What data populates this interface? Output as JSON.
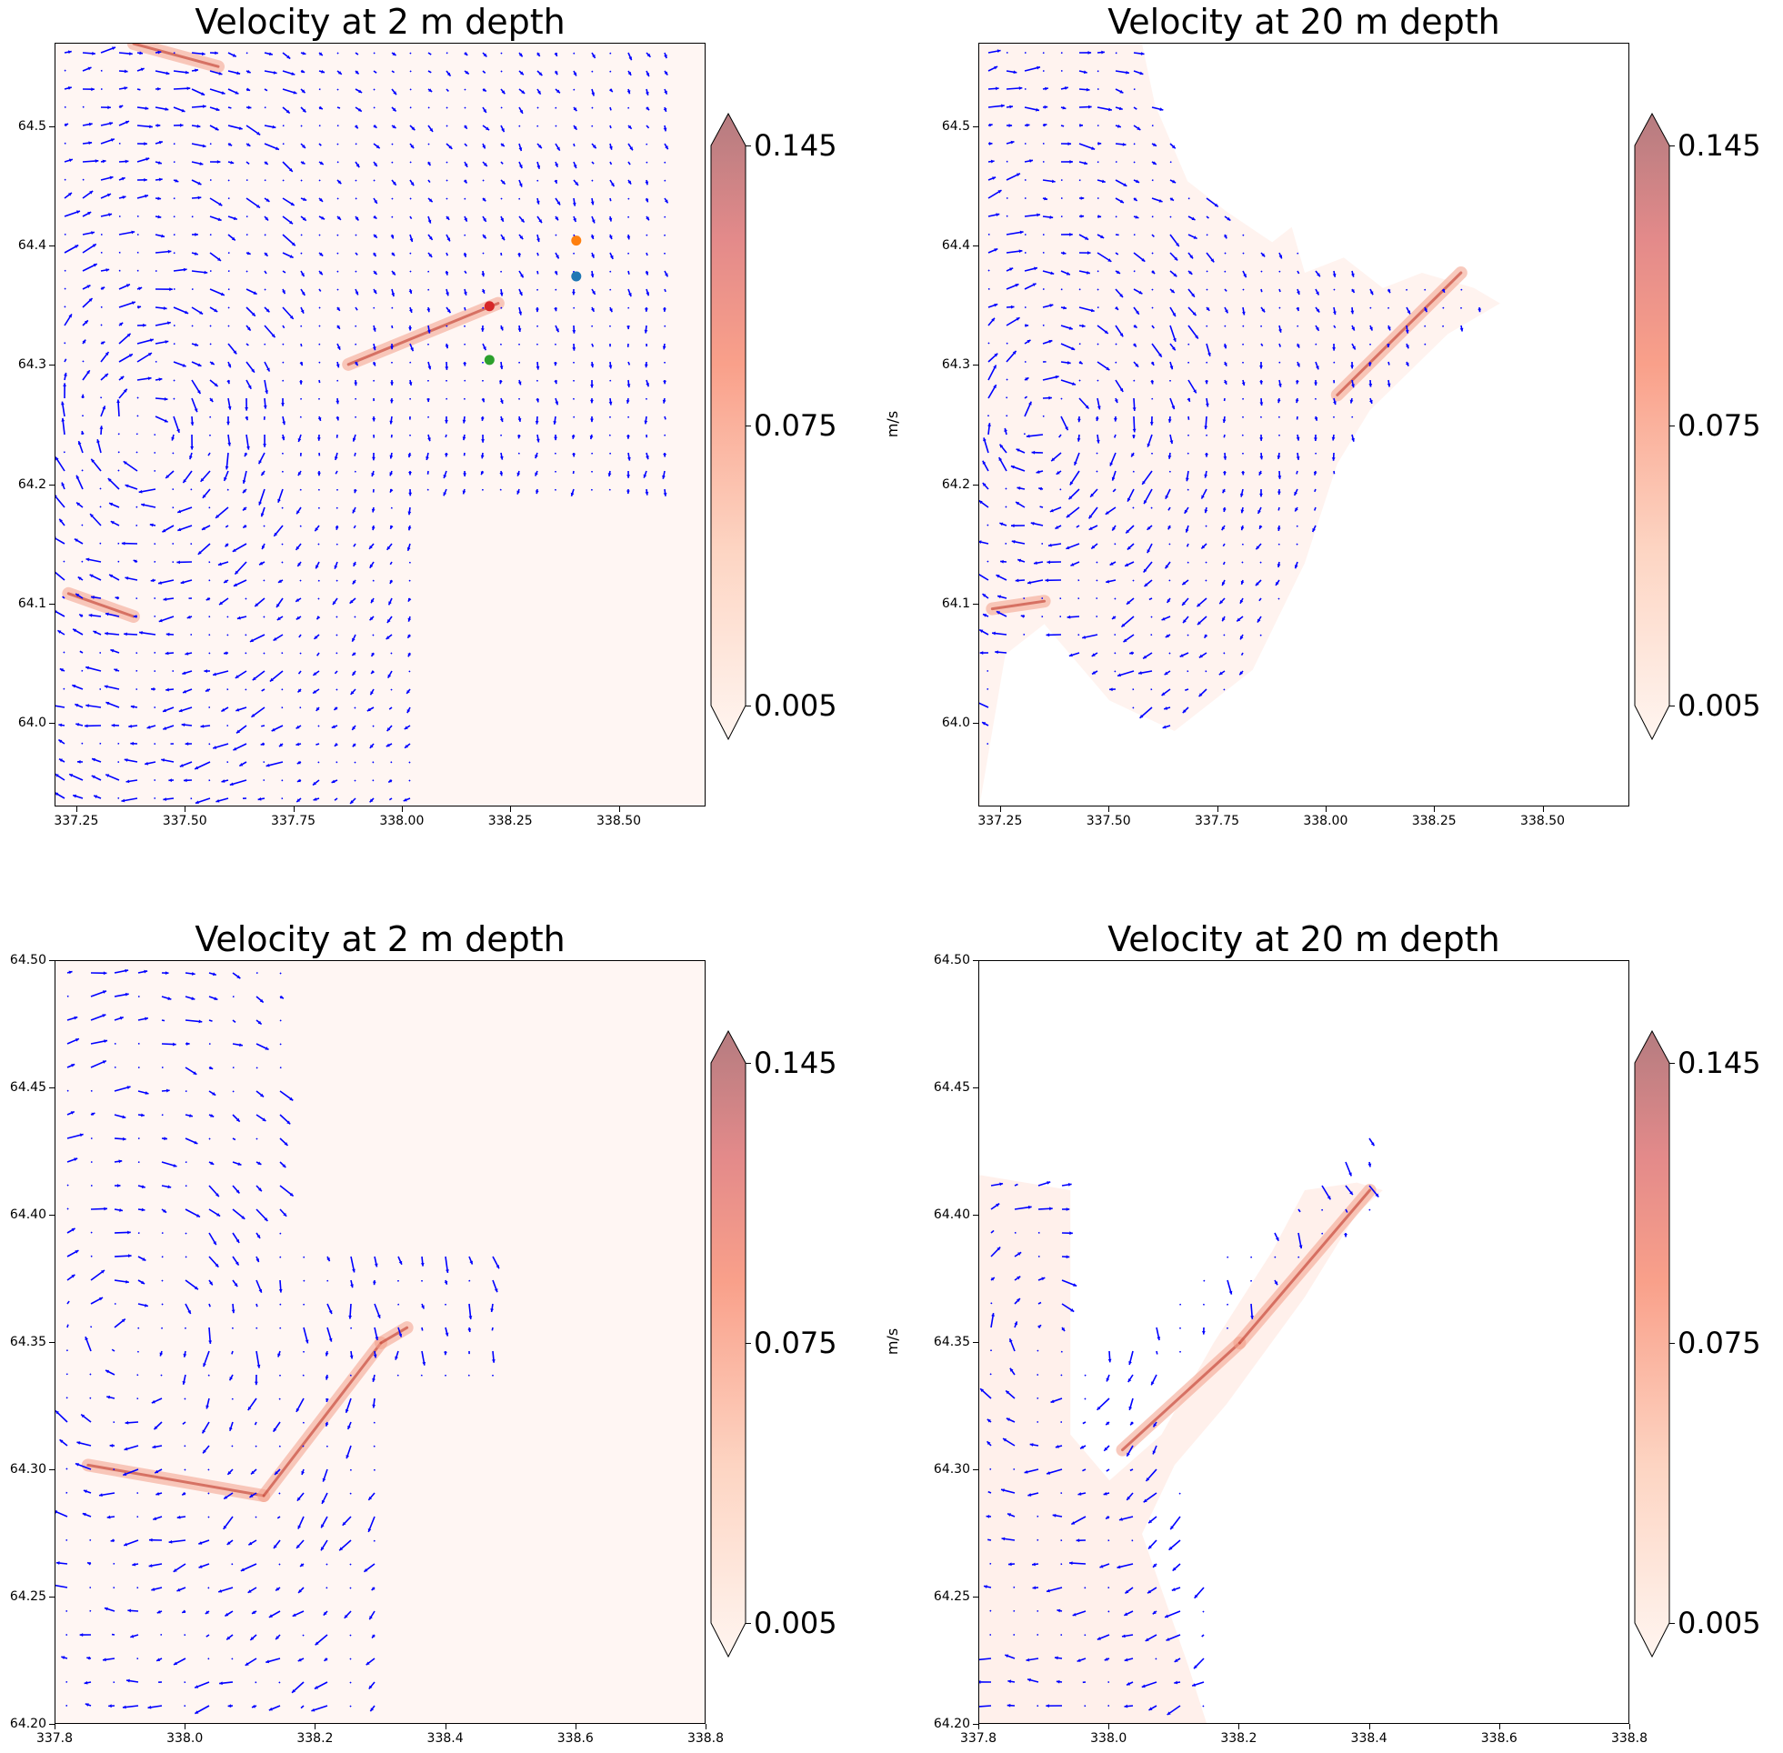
{
  "chart_data": [
    {
      "type": "quiver",
      "title": "Velocity at 2 m depth",
      "xticks": [
        "337.25",
        "337.50",
        "337.75",
        "338.00",
        "338.25",
        "338.50"
      ],
      "xtick_values": [
        337.25,
        337.5,
        337.75,
        338.0,
        338.25,
        338.5
      ],
      "yticks": [
        "64.0",
        "64.1",
        "64.2",
        "64.3",
        "64.4",
        "64.5"
      ],
      "ytick_values": [
        64.0,
        64.1,
        64.2,
        64.3,
        64.4,
        64.5
      ],
      "xlim": [
        337.2,
        338.7
      ],
      "ylim": [
        63.93,
        64.57
      ],
      "markers": [
        {
          "x": 338.4,
          "y": 64.405,
          "color": "#ff7f0e"
        },
        {
          "x": 338.4,
          "y": 64.375,
          "color": "#1f77b4"
        },
        {
          "x": 338.2,
          "y": 64.35,
          "color": "#d62728"
        },
        {
          "x": 338.2,
          "y": 64.305,
          "color": "#2ca02c"
        }
      ],
      "colorbar": {
        "ticks": [
          "0.145",
          "0.075",
          "0.005"
        ],
        "tick_values": [
          0.145,
          0.075,
          0.005
        ],
        "label": "m/s",
        "extend": "both"
      },
      "colormap": "Reds"
    },
    {
      "type": "quiver",
      "title": "Velocity at 20 m depth",
      "xticks": [
        "337.25",
        "337.50",
        "337.75",
        "338.00",
        "338.25",
        "338.50"
      ],
      "xtick_values": [
        337.25,
        337.5,
        337.75,
        338.0,
        338.25,
        338.5
      ],
      "yticks": [
        "64.0",
        "64.1",
        "64.2",
        "64.3",
        "64.4",
        "64.5"
      ],
      "ytick_values": [
        64.0,
        64.1,
        64.2,
        64.3,
        64.4,
        64.5
      ],
      "xlim": [
        337.2,
        338.7
      ],
      "ylim": [
        63.93,
        64.57
      ],
      "markers": [],
      "colorbar": {
        "ticks": [
          "0.145",
          "0.075",
          "0.005"
        ],
        "tick_values": [
          0.145,
          0.075,
          0.005
        ],
        "label": "m/s",
        "extend": "both"
      },
      "colormap": "Reds"
    },
    {
      "type": "quiver",
      "title": "Velocity at 2 m depth",
      "xticks": [
        "337.8",
        "338.0",
        "338.2",
        "338.4",
        "338.6",
        "338.8"
      ],
      "xtick_values": [
        337.8,
        338.0,
        338.2,
        338.4,
        338.6,
        338.8
      ],
      "yticks": [
        "64.20",
        "64.25",
        "64.30",
        "64.35",
        "64.40",
        "64.45",
        "64.50"
      ],
      "ytick_values": [
        64.2,
        64.25,
        64.3,
        64.35,
        64.4,
        64.45,
        64.5
      ],
      "xlim": [
        337.8,
        338.8
      ],
      "ylim": [
        64.2,
        64.5
      ],
      "markers": [],
      "colorbar": {
        "ticks": [
          "0.145",
          "0.075",
          "0.005"
        ],
        "tick_values": [
          0.145,
          0.075,
          0.005
        ],
        "label": "m/s",
        "extend": "both"
      },
      "colormap": "Reds"
    },
    {
      "type": "quiver",
      "title": "Velocity at 20 m depth",
      "xticks": [
        "337.8",
        "338.0",
        "338.2",
        "338.4",
        "338.6",
        "338.8"
      ],
      "xtick_values": [
        337.8,
        338.0,
        338.2,
        338.4,
        338.6,
        338.8
      ],
      "yticks": [
        "64.20",
        "64.25",
        "64.30",
        "64.35",
        "64.40",
        "64.45",
        "64.50"
      ],
      "ytick_values": [
        64.2,
        64.25,
        64.3,
        64.35,
        64.4,
        64.45,
        64.5
      ],
      "xlim": [
        337.8,
        338.8
      ],
      "ylim": [
        64.2,
        64.5
      ],
      "markers": [],
      "colorbar": {
        "ticks": [
          "0.145",
          "0.075",
          "0.005"
        ],
        "tick_values": [
          0.145,
          0.075,
          0.005
        ],
        "label": "m/s",
        "extend": "both"
      },
      "colormap": "Reds"
    }
  ]
}
